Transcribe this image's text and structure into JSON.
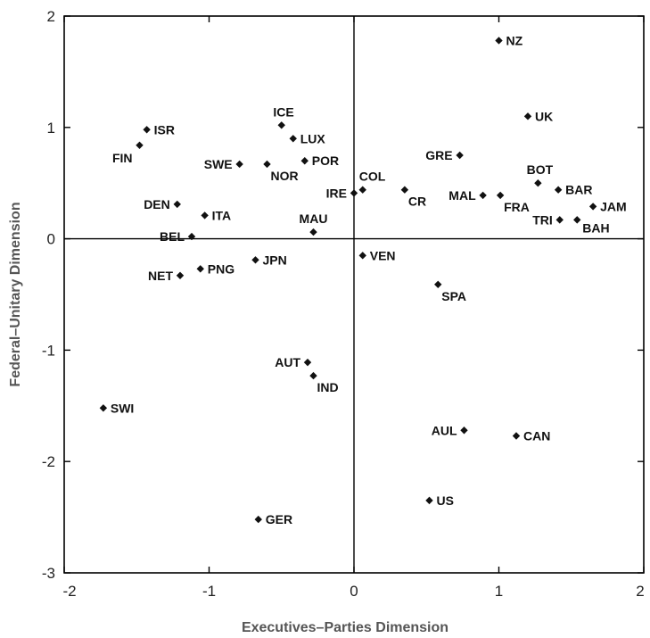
{
  "chart_data": {
    "type": "scatter",
    "xlabel": "Executives–Parties Dimension",
    "ylabel": "Federal–Unitary Dimension",
    "xlim": [
      -2,
      2
    ],
    "ylim": [
      -3,
      2
    ],
    "x_ticks": [
      -2,
      -1,
      0,
      1,
      2
    ],
    "y_ticks": [
      -3,
      -2,
      -1,
      0,
      1,
      2
    ],
    "grid": false,
    "zero_lines": true,
    "marker": "diamond",
    "points": [
      {
        "label": "NZ",
        "x": 1.0,
        "y": 1.78
      },
      {
        "label": "UK",
        "x": 1.2,
        "y": 1.1
      },
      {
        "label": "ISR",
        "x": -1.43,
        "y": 0.98
      },
      {
        "label": "FIN",
        "x": -1.48,
        "y": 0.84
      },
      {
        "label": "ICE",
        "x": -0.5,
        "y": 1.02
      },
      {
        "label": "LUX",
        "x": -0.42,
        "y": 0.9
      },
      {
        "label": "SWE",
        "x": -0.79,
        "y": 0.67
      },
      {
        "label": "NOR",
        "x": -0.6,
        "y": 0.67
      },
      {
        "label": "POR",
        "x": -0.34,
        "y": 0.7
      },
      {
        "label": "GRE",
        "x": 0.73,
        "y": 0.75
      },
      {
        "label": "BOT",
        "x": 1.27,
        "y": 0.5
      },
      {
        "label": "BAR",
        "x": 1.41,
        "y": 0.44
      },
      {
        "label": "JAM",
        "x": 1.65,
        "y": 0.29
      },
      {
        "label": "COL",
        "x": 0.06,
        "y": 0.44
      },
      {
        "label": "IRE",
        "x": 0.0,
        "y": 0.41
      },
      {
        "label": "CR",
        "x": 0.35,
        "y": 0.44
      },
      {
        "label": "MAL",
        "x": 0.89,
        "y": 0.39
      },
      {
        "label": "FRA",
        "x": 1.01,
        "y": 0.39
      },
      {
        "label": "DEN",
        "x": -1.22,
        "y": 0.31
      },
      {
        "label": "ITA",
        "x": -1.03,
        "y": 0.21
      },
      {
        "label": "MAU",
        "x": -0.28,
        "y": 0.06
      },
      {
        "label": "BEL",
        "x": -1.12,
        "y": 0.02
      },
      {
        "label": "TRI",
        "x": 1.42,
        "y": 0.17
      },
      {
        "label": "BAH",
        "x": 1.54,
        "y": 0.17
      },
      {
        "label": "JPN",
        "x": -0.68,
        "y": -0.19
      },
      {
        "label": "PNG",
        "x": -1.06,
        "y": -0.27
      },
      {
        "label": "NET",
        "x": -1.2,
        "y": -0.33
      },
      {
        "label": "VEN",
        "x": 0.06,
        "y": -0.15
      },
      {
        "label": "SPA",
        "x": 0.58,
        "y": -0.41
      },
      {
        "label": "AUT",
        "x": -0.32,
        "y": -1.11
      },
      {
        "label": "IND",
        "x": -0.28,
        "y": -1.23
      },
      {
        "label": "SWI",
        "x": -1.73,
        "y": -1.52
      },
      {
        "label": "AUL",
        "x": 0.76,
        "y": -1.72
      },
      {
        "label": "CAN",
        "x": 1.12,
        "y": -1.77
      },
      {
        "label": "US",
        "x": 0.52,
        "y": -2.35
      },
      {
        "label": "GER",
        "x": -0.66,
        "y": -2.52
      }
    ]
  }
}
